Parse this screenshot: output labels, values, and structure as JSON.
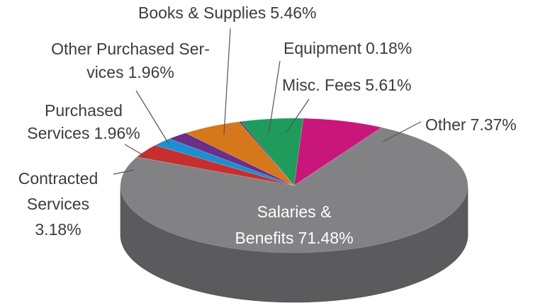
{
  "chart_data": {
    "type": "pie3d",
    "categories": [
      [
        "Salaries &",
        "Benefits"
      ],
      [
        "Contracted",
        "Services"
      ],
      [
        "Purchased",
        "Services"
      ],
      [
        "Other Purchased Ser-",
        "vices"
      ],
      [
        "Books & Supplies"
      ],
      [
        "Equipment"
      ],
      [
        "Misc. Fees"
      ],
      [
        "Other"
      ]
    ],
    "values": [
      71.48,
      3.18,
      1.96,
      1.96,
      5.46,
      0.18,
      5.61,
      7.37
    ],
    "value_labels": [
      "71.48%",
      "3.18%",
      "1.96%",
      "1.96%",
      "5.46%",
      "0.18%",
      "5.61%",
      "7.37%"
    ],
    "colors": [
      "#828285",
      "#c3302e",
      "#1d8fd0",
      "#6b2f88",
      "#d5771b",
      "#2b3a8c",
      "#1f9b5b",
      "#c9167b"
    ]
  }
}
